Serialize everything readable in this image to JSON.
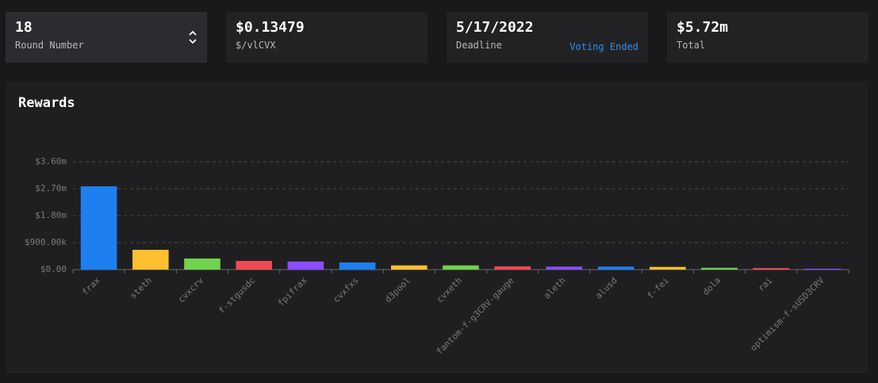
{
  "cards": [
    {
      "value": "18",
      "label": "Round Number"
    },
    {
      "value": "$0.13479",
      "label": "$/vlCVX"
    },
    {
      "value": "5/17/2022",
      "label": "Deadline",
      "status": "Voting Ended"
    },
    {
      "value": "$5.72m",
      "label": "Total"
    }
  ],
  "chart_data": {
    "type": "bar",
    "title": "Rewards",
    "categories": [
      "frax",
      "steth",
      "cvxcrv",
      "f-stgusdc",
      "fpifrax",
      "cvxfxs",
      "d3pool",
      "cvxeth",
      "fantom-f-g3CRV-gauge",
      "aleth",
      "alusd",
      "f-fei",
      "dola",
      "rai",
      "optimism-f-sUSD3CRV"
    ],
    "values": [
      2780000,
      660000,
      370000,
      290000,
      270000,
      240000,
      140000,
      140000,
      110000,
      100000,
      100000,
      90000,
      60000,
      50000,
      30000
    ],
    "colors": [
      "#1d7ff0",
      "#fdc02f",
      "#72d24e",
      "#f04a55",
      "#8a4dff",
      "#1d7ff0",
      "#fdc02f",
      "#72d24e",
      "#f04a55",
      "#8a4dff",
      "#1d7ff0",
      "#fdc02f",
      "#72d24e",
      "#f04a55",
      "#8a4dff"
    ],
    "ylim": [
      0,
      3600000
    ],
    "yticks": [
      {
        "value": 0,
        "label": "$0.00"
      },
      {
        "value": 900000,
        "label": "$900.00k"
      },
      {
        "value": 1800000,
        "label": "$1.80m"
      },
      {
        "value": 2700000,
        "label": "$2.70m"
      },
      {
        "value": 3600000,
        "label": "$3.60m"
      }
    ],
    "grid": true
  }
}
